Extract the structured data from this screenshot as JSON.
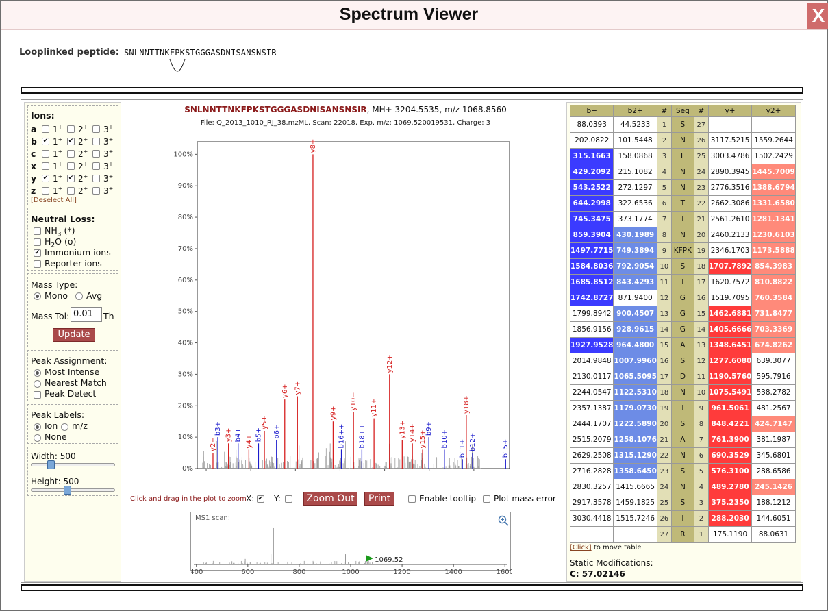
{
  "window": {
    "title": "Spectrum Viewer",
    "close_label": "X"
  },
  "peptide": {
    "label": "Looplinked peptide:",
    "sequence": "SNLNNTTNKFPKSTGGGASDNISANSNSIR"
  },
  "ions": {
    "header": "Ions:",
    "rows": [
      {
        "type": "a",
        "checked": [
          false,
          false,
          false
        ]
      },
      {
        "type": "b",
        "checked": [
          true,
          true,
          false
        ]
      },
      {
        "type": "c",
        "checked": [
          false,
          false,
          false
        ]
      },
      {
        "type": "x",
        "checked": [
          false,
          false,
          false
        ]
      },
      {
        "type": "y",
        "checked": [
          true,
          true,
          false
        ]
      },
      {
        "type": "z",
        "checked": [
          false,
          false,
          false
        ]
      }
    ],
    "charges": [
      "1",
      "2",
      "3"
    ],
    "deselect": "[Deselect All]"
  },
  "neutral_loss": {
    "header": "Neutral Loss:",
    "items": [
      {
        "label": "NH",
        "sub": "3",
        "suffix": " (*)",
        "checked": false
      },
      {
        "label": "H",
        "sub": "2",
        "suffix": "O (o)",
        "checked": false
      },
      {
        "label": "Immonium ions",
        "sub": "",
        "suffix": "",
        "checked": true
      },
      {
        "label": "Reporter ions",
        "sub": "",
        "suffix": "",
        "checked": false
      }
    ]
  },
  "mass_type": {
    "header": "Mass Type:",
    "options": [
      "Mono",
      "Avg"
    ],
    "selected": "Mono",
    "tol_label": "Mass Tol:",
    "tol_value": "0.01",
    "tol_unit": "Th",
    "update": "Update"
  },
  "peak_assignment": {
    "header": "Peak Assignment:",
    "options": [
      "Most Intense",
      "Nearest Match"
    ],
    "selected": "Most Intense",
    "detect": "Peak Detect"
  },
  "peak_labels": {
    "header": "Peak Labels:",
    "options": [
      "Ion",
      "m/z",
      "None"
    ],
    "selected": "Ion"
  },
  "size": {
    "width_label": "Width: 500",
    "height_label": "Height: 500",
    "width": 500,
    "height": 500
  },
  "spectrum": {
    "peptide": "SNLNNTTNKFPKSTGGGASDNISANSNSIR",
    "precursor": ", MH+ 3204.5535, m/z 1068.8560",
    "file_info": "File: Q_2013_1010_RJ_38.mzML, Scan: 22018, Exp. m/z: 1069.520019531, Charge: 3"
  },
  "controls": {
    "hint": "Click and drag in the plot to zoom",
    "x_label": "X:",
    "x_checked": true,
    "y_label": "Y:",
    "y_checked": false,
    "zoom_out": "Zoom Out",
    "print": "Print",
    "tooltip": "Enable tooltip",
    "mass_error": "Plot mass error"
  },
  "ms1": {
    "title": "MS1 scan:",
    "marker": "1069.52",
    "x_ticks": [
      "400",
      "600",
      "800",
      "1000",
      "1200",
      "1400",
      "1600"
    ],
    "xlim": [
      390,
      1610
    ],
    "peaks": [
      [
        700,
        0.78
      ],
      [
        690,
        0.22
      ],
      [
        590,
        0.12
      ],
      [
        980,
        0.22
      ],
      [
        1069.52,
        0.1
      ]
    ]
  },
  "colors": {
    "b_strong": "#3b3bff",
    "b_light": "#6d8ce6",
    "y_strong": "#ff3b3b",
    "y_light": "#ff8a7a",
    "header": "#bfb978"
  },
  "chart_data": {
    "type": "bar",
    "xlim": [
      200,
      1950
    ],
    "ylim": [
      0,
      110
    ],
    "x_ticks": [
      "250",
      "500",
      "750",
      "1000",
      "1250",
      "1500",
      "1750"
    ],
    "y_ticks": [
      "0%",
      "10%",
      "20%",
      "30%",
      "40%",
      "50%",
      "60%",
      "70%",
      "80%",
      "90%",
      "100%"
    ],
    "series": [
      {
        "name": "y",
        "color": "#d62020",
        "peaks": [
          {
            "label": "y8+",
            "x": 848.42,
            "y": 100
          },
          {
            "label": "y6+",
            "x": 690.35,
            "y": 22
          },
          {
            "label": "y7+",
            "x": 761.39,
            "y": 23
          },
          {
            "label": "y9+",
            "x": 961.51,
            "y": 15
          },
          {
            "label": "y10+",
            "x": 1075.55,
            "y": 18
          },
          {
            "label": "y11+",
            "x": 1190.58,
            "y": 16
          },
          {
            "label": "y12+",
            "x": 1277.61,
            "y": 30
          },
          {
            "label": "y18+",
            "x": 1707.79,
            "y": 17
          },
          {
            "label": "y5+",
            "x": 576.31,
            "y": 12
          },
          {
            "label": "y4+",
            "x": 489.28,
            "y": 6
          },
          {
            "label": "y3+",
            "x": 375.24,
            "y": 8
          },
          {
            "label": "y2+",
            "x": 288.2,
            "y": 5
          },
          {
            "label": "y13+",
            "x": 1348.65,
            "y": 9
          },
          {
            "label": "y14+",
            "x": 1405.67,
            "y": 8
          },
          {
            "label": "y15+",
            "x": 1462.69,
            "y": 6
          }
        ]
      },
      {
        "name": "b",
        "color": "#1a1acc",
        "peaks": [
          {
            "label": "b3+",
            "x": 315.17,
            "y": 10
          },
          {
            "label": "b4+",
            "x": 429.21,
            "y": 8
          },
          {
            "label": "b5+",
            "x": 543.25,
            "y": 8
          },
          {
            "label": "b6+",
            "x": 644.3,
            "y": 9
          },
          {
            "label": "b9+",
            "x": 1497.77,
            "y": 10
          },
          {
            "label": "b10+",
            "x": 1584.8,
            "y": 6
          },
          {
            "label": "b11+",
            "x": 1685.85,
            "y": 3
          },
          {
            "label": "b12+",
            "x": 1742.87,
            "y": 5
          },
          {
            "label": "b15+",
            "x": 1927.95,
            "y": 3
          },
          {
            "label": "b16++",
            "x": 1007.99,
            "y": 6
          },
          {
            "label": "b18++",
            "x": 1122.53,
            "y": 6
          }
        ]
      }
    ]
  },
  "fragment_table": {
    "headers": [
      "b+",
      "b2+",
      "#",
      "Seq",
      "#",
      "y+",
      "y2+"
    ],
    "rows": [
      [
        "88.0393",
        "44.5233",
        "1",
        "S",
        "27",
        "",
        ""
      ],
      [
        "202.0822",
        "101.5448",
        "2",
        "N",
        "26",
        "3117.5215",
        "1559.2644"
      ],
      [
        "315.1663",
        "158.0868",
        "3",
        "L",
        "25",
        "3003.4786",
        "1502.2429"
      ],
      [
        "429.2092",
        "215.1082",
        "4",
        "N",
        "24",
        "2890.3945",
        "1445.7009"
      ],
      [
        "543.2522",
        "272.1297",
        "5",
        "N",
        "23",
        "2776.3516",
        "1388.6794"
      ],
      [
        "644.2998",
        "322.6536",
        "6",
        "T",
        "22",
        "2662.3086",
        "1331.6580"
      ],
      [
        "745.3475",
        "373.1774",
        "7",
        "T",
        "21",
        "2561.2610",
        "1281.1341"
      ],
      [
        "859.3904",
        "430.1989",
        "8",
        "N",
        "20",
        "2460.2133",
        "1230.6103"
      ],
      [
        "1497.7715",
        "749.3894",
        "9",
        "KFPK",
        "19",
        "2346.1703",
        "1173.5888"
      ],
      [
        "1584.8036",
        "792.9054",
        "10",
        "S",
        "18",
        "1707.7892",
        "854.3983"
      ],
      [
        "1685.8512",
        "843.4293",
        "11",
        "T",
        "17",
        "1620.7572",
        "810.8822"
      ],
      [
        "1742.8727",
        "871.9400",
        "12",
        "G",
        "16",
        "1519.7095",
        "760.3584"
      ],
      [
        "1799.8942",
        "900.4507",
        "13",
        "G",
        "15",
        "1462.6881",
        "731.8477"
      ],
      [
        "1856.9156",
        "928.9615",
        "14",
        "G",
        "14",
        "1405.6666",
        "703.3369"
      ],
      [
        "1927.9528",
        "964.4800",
        "15",
        "A",
        "13",
        "1348.6451",
        "674.8262"
      ],
      [
        "2014.9848",
        "1007.9960",
        "16",
        "S",
        "12",
        "1277.6080",
        "639.3077"
      ],
      [
        "2130.0117",
        "1065.5095",
        "17",
        "D",
        "11",
        "1190.5760",
        "595.7916"
      ],
      [
        "2244.0547",
        "1122.5310",
        "18",
        "N",
        "10",
        "1075.5491",
        "538.2782"
      ],
      [
        "2357.1387",
        "1179.0730",
        "19",
        "I",
        "9",
        "961.5061",
        "481.2567"
      ],
      [
        "2444.1707",
        "1222.5890",
        "20",
        "S",
        "8",
        "848.4221",
        "424.7147"
      ],
      [
        "2515.2079",
        "1258.1076",
        "21",
        "A",
        "7",
        "761.3900",
        "381.1987"
      ],
      [
        "2629.2508",
        "1315.1290",
        "22",
        "N",
        "6",
        "690.3529",
        "345.6801"
      ],
      [
        "2716.2828",
        "1358.6450",
        "23",
        "S",
        "5",
        "576.3100",
        "288.6586"
      ],
      [
        "2830.3257",
        "1415.6665",
        "24",
        "N",
        "4",
        "489.2780",
        "245.1426"
      ],
      [
        "2917.3578",
        "1459.1825",
        "25",
        "S",
        "3",
        "375.2350",
        "188.1212"
      ],
      [
        "3030.4418",
        "1515.7246",
        "26",
        "I",
        "2",
        "288.2030",
        "144.6051"
      ],
      [
        "",
        "",
        "27",
        "R",
        "1",
        "175.1190",
        "88.0631"
      ]
    ],
    "highlight": [
      [
        "",
        "",
        "",
        "",
        "",
        "",
        ""
      ],
      [
        "",
        "",
        "",
        "",
        "",
        "",
        ""
      ],
      [
        "b1",
        "",
        "",
        "",
        "",
        "",
        ""
      ],
      [
        "b1",
        "",
        "",
        "",
        "",
        "",
        "y2"
      ],
      [
        "b1",
        "",
        "",
        "",
        "",
        "",
        "y2"
      ],
      [
        "b1",
        "",
        "",
        "",
        "",
        "",
        "y2"
      ],
      [
        "b1",
        "",
        "",
        "",
        "",
        "",
        "y2"
      ],
      [
        "b1",
        "b2",
        "",
        "",
        "",
        "",
        "y2"
      ],
      [
        "b1",
        "b2",
        "",
        "",
        "",
        "",
        "y2"
      ],
      [
        "b1",
        "b2",
        "",
        "",
        "",
        "y1",
        "y2"
      ],
      [
        "b1",
        "b2",
        "",
        "",
        "",
        "",
        "y2"
      ],
      [
        "b1",
        "",
        "",
        "",
        "",
        "",
        "y2"
      ],
      [
        "",
        "b2",
        "",
        "",
        "",
        "y1",
        "y2"
      ],
      [
        "",
        "b2",
        "",
        "",
        "",
        "y1",
        "y2"
      ],
      [
        "b1",
        "b2",
        "",
        "",
        "",
        "y1",
        "y2"
      ],
      [
        "",
        "b2",
        "",
        "",
        "",
        "y1",
        ""
      ],
      [
        "",
        "b2",
        "",
        "",
        "",
        "y1",
        ""
      ],
      [
        "",
        "b2",
        "",
        "",
        "",
        "y1",
        ""
      ],
      [
        "",
        "b2",
        "",
        "",
        "",
        "y1",
        ""
      ],
      [
        "",
        "b2",
        "",
        "",
        "",
        "y1",
        "y2"
      ],
      [
        "",
        "b2",
        "",
        "",
        "",
        "y1",
        ""
      ],
      [
        "",
        "b2",
        "",
        "",
        "",
        "y1",
        ""
      ],
      [
        "",
        "b2",
        "",
        "",
        "",
        "y1",
        ""
      ],
      [
        "",
        "",
        "",
        "",
        "",
        "y1",
        "y2"
      ],
      [
        "",
        "",
        "",
        "",
        "",
        "y1",
        ""
      ],
      [
        "",
        "",
        "",
        "",
        "",
        "y1",
        ""
      ],
      [
        "",
        "",
        "",
        "",
        "",
        "",
        ""
      ]
    ],
    "move_link": "[Click]",
    "move_text": " to move table"
  },
  "static_mods": {
    "label": "Static Modifications:",
    "value": "C: 57.02146"
  }
}
